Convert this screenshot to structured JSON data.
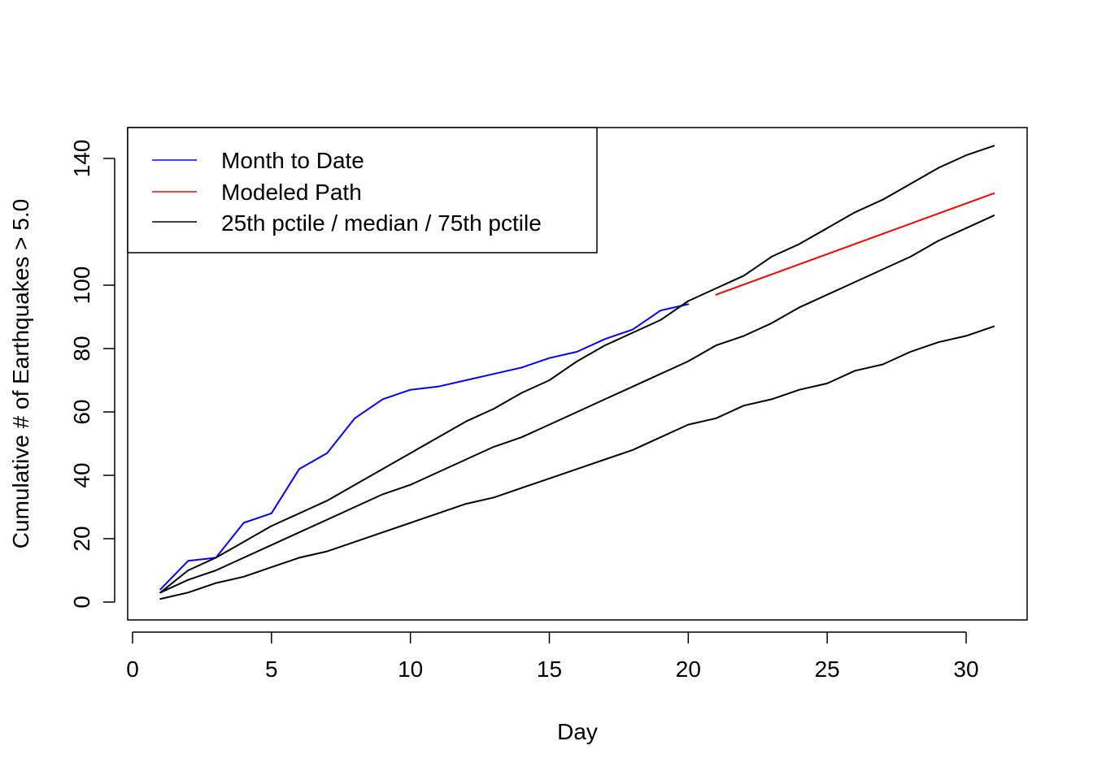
{
  "chart_data": {
    "type": "line",
    "xlabel": "Day",
    "ylabel": "Cumulative # of Earthquakes > 5.0",
    "xlim": [
      0,
      32
    ],
    "ylim": [
      -5,
      150
    ],
    "x_ticks": [
      0,
      5,
      10,
      15,
      20,
      25,
      30
    ],
    "y_ticks": [
      0,
      20,
      40,
      60,
      80,
      100,
      140
    ],
    "legend_position": "top-left",
    "legend": [
      {
        "label": "Month to Date",
        "color": "#0000ff"
      },
      {
        "label": "Modeled Path",
        "color": "#ff0000"
      },
      {
        "label": "25th pctile / median / 75th pctile",
        "color": "#000000"
      }
    ],
    "series": [
      {
        "key": "month_to_date",
        "color": "#0000ff",
        "x": [
          1,
          2,
          3,
          4,
          5,
          6,
          7,
          8,
          9,
          10,
          11,
          12,
          13,
          14,
          15,
          16,
          17,
          18,
          19,
          20
        ],
        "y": [
          4,
          13,
          14,
          25,
          28,
          42,
          47,
          58,
          64,
          67,
          68,
          70,
          72,
          74,
          77,
          79,
          83,
          86,
          92,
          94
        ]
      },
      {
        "key": "modeled_path",
        "color": "#ff0000",
        "x": [
          21,
          31
        ],
        "y": [
          97,
          129
        ]
      },
      {
        "key": "pctile_75",
        "color": "#000000",
        "x": [
          1,
          2,
          3,
          4,
          5,
          6,
          7,
          8,
          9,
          10,
          11,
          12,
          13,
          14,
          15,
          16,
          17,
          18,
          19,
          20,
          21,
          22,
          23,
          24,
          25,
          26,
          27,
          28,
          29,
          30,
          31
        ],
        "y": [
          3,
          10,
          14,
          19,
          24,
          28,
          32,
          37,
          42,
          47,
          52,
          57,
          61,
          66,
          70,
          76,
          81,
          85,
          89,
          95,
          99,
          103,
          109,
          113,
          118,
          123,
          127,
          132,
          137,
          141,
          144
        ]
      },
      {
        "key": "median",
        "color": "#000000",
        "x": [
          1,
          2,
          3,
          4,
          5,
          6,
          7,
          8,
          9,
          10,
          11,
          12,
          13,
          14,
          15,
          16,
          17,
          18,
          19,
          20,
          21,
          22,
          23,
          24,
          25,
          26,
          27,
          28,
          29,
          30,
          31
        ],
        "y": [
          3,
          7,
          10,
          14,
          18,
          22,
          26,
          30,
          34,
          37,
          41,
          45,
          49,
          52,
          56,
          60,
          64,
          68,
          72,
          76,
          81,
          84,
          88,
          93,
          97,
          101,
          105,
          109,
          114,
          118,
          122
        ]
      },
      {
        "key": "pctile_25",
        "color": "#000000",
        "x": [
          1,
          2,
          3,
          4,
          5,
          6,
          7,
          8,
          9,
          10,
          11,
          12,
          13,
          14,
          15,
          16,
          17,
          18,
          19,
          20,
          21,
          22,
          23,
          24,
          25,
          26,
          27,
          28,
          29,
          30,
          31
        ],
        "y": [
          1,
          3,
          6,
          8,
          11,
          14,
          16,
          19,
          22,
          25,
          28,
          31,
          33,
          36,
          39,
          42,
          45,
          48,
          52,
          56,
          58,
          62,
          64,
          67,
          69,
          73,
          75,
          79,
          82,
          84,
          87
        ]
      }
    ]
  }
}
